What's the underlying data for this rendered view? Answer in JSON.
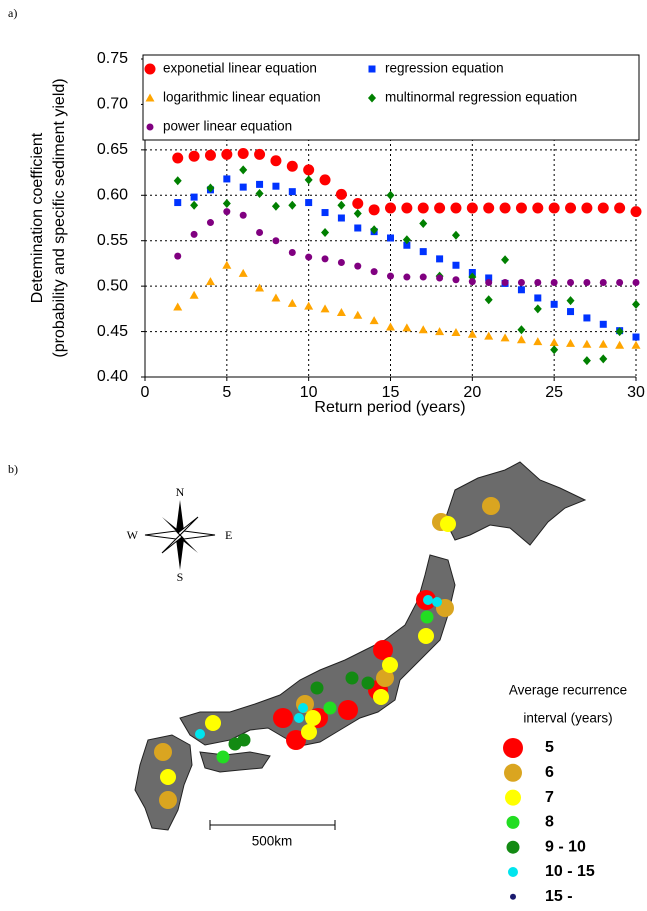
{
  "chart_data": {
    "type": "scatter",
    "panel_label": "a)",
    "xlabel": "Return period (years)",
    "ylabel": [
      "Detemination coefficient",
      "(probability and specific sediment yield)"
    ],
    "x": [
      2,
      3,
      4,
      5,
      6,
      7,
      8,
      9,
      10,
      11,
      12,
      13,
      14,
      15,
      16,
      17,
      18,
      19,
      20,
      21,
      22,
      23,
      24,
      25,
      26,
      27,
      28,
      29,
      30
    ],
    "xlim": [
      0,
      30
    ],
    "xticks": [
      0,
      5,
      10,
      15,
      20,
      25,
      30
    ],
    "ylim": [
      0.4,
      0.75
    ],
    "yticks": [
      {
        "value": 0.4,
        "label": "0.40"
      },
      0.45,
      {
        "value": 0.5,
        "label": "0.50"
      },
      0.55,
      {
        "value": 0.6,
        "label": "0.60"
      },
      0.65,
      {
        "value": 0.7,
        "label": "0.70"
      },
      0.75
    ],
    "grid": true,
    "series": [
      {
        "name": "exponetial linear equation",
        "color": "#ff0000",
        "marker": "circle",
        "values": [
          0.641,
          0.643,
          0.644,
          0.645,
          0.646,
          0.645,
          0.638,
          0.632,
          0.628,
          0.617,
          0.601,
          0.591,
          0.584,
          0.586,
          0.586,
          0.586,
          0.586,
          0.586,
          0.586,
          0.586,
          0.586,
          0.586,
          0.586,
          0.586,
          0.586,
          0.586,
          0.586,
          0.586,
          0.582
        ]
      },
      {
        "name": "regression equation",
        "color": "#0033ff",
        "marker": "square",
        "values": [
          0.592,
          0.598,
          0.606,
          0.618,
          0.609,
          0.612,
          0.61,
          0.604,
          0.592,
          0.581,
          0.575,
          0.564,
          0.56,
          0.553,
          0.545,
          0.538,
          0.53,
          0.523,
          0.515,
          0.509,
          0.503,
          0.496,
          0.487,
          0.48,
          0.472,
          0.465,
          0.458,
          0.451,
          0.444
        ]
      },
      {
        "name": "logarithmic linear equation",
        "color": "#ffa500",
        "marker": "triangle",
        "values": [
          0.477,
          0.49,
          0.505,
          0.523,
          0.514,
          0.498,
          0.487,
          0.481,
          0.478,
          0.475,
          0.471,
          0.468,
          0.462,
          0.455,
          0.454,
          0.452,
          0.45,
          0.449,
          0.447,
          0.445,
          0.443,
          0.441,
          0.439,
          0.438,
          0.437,
          0.436,
          0.436,
          0.435,
          0.435
        ]
      },
      {
        "name": "multinormal regression equation",
        "color": "#008000",
        "marker": "diamond",
        "values": [
          0.616,
          0.589,
          0.608,
          0.591,
          0.628,
          0.602,
          0.588,
          0.589,
          0.617,
          0.559,
          0.589,
          0.58,
          0.562,
          0.6,
          0.551,
          0.569,
          0.511,
          0.556,
          0.51,
          0.485,
          0.529,
          0.452,
          0.475,
          0.43,
          0.484,
          0.418,
          0.42,
          0.45,
          0.48
        ]
      },
      {
        "name": "power linear equation",
        "color": "#800080",
        "marker": "small-circle",
        "values": [
          0.533,
          0.557,
          0.57,
          0.582,
          0.578,
          0.559,
          0.55,
          0.537,
          0.532,
          0.53,
          0.526,
          0.522,
          0.516,
          0.511,
          0.51,
          0.51,
          0.509,
          0.507,
          0.505,
          0.504,
          0.504,
          0.504,
          0.504,
          0.504,
          0.504,
          0.504,
          0.504,
          0.504,
          0.504
        ]
      }
    ]
  },
  "map": {
    "panel_label": "b)",
    "compass": {
      "n": "N",
      "s": "S",
      "e": "E",
      "w": "W"
    },
    "scale_label": "500km",
    "legend_title": [
      "Average recurrence",
      "interval (years)"
    ],
    "classes": [
      {
        "label": "5",
        "color": "#ff0000"
      },
      {
        "label": "6",
        "color": "#daa520"
      },
      {
        "label": "7",
        "color": "#ffff00"
      },
      {
        "label": "8",
        "color": "#22dd22"
      },
      {
        "label": "9 - 10",
        "color": "#138a13"
      },
      {
        "label": "10 - 15",
        "color": "#00e5ee"
      },
      {
        "label": "15 -",
        "color": "#1a1a6e"
      }
    ]
  }
}
